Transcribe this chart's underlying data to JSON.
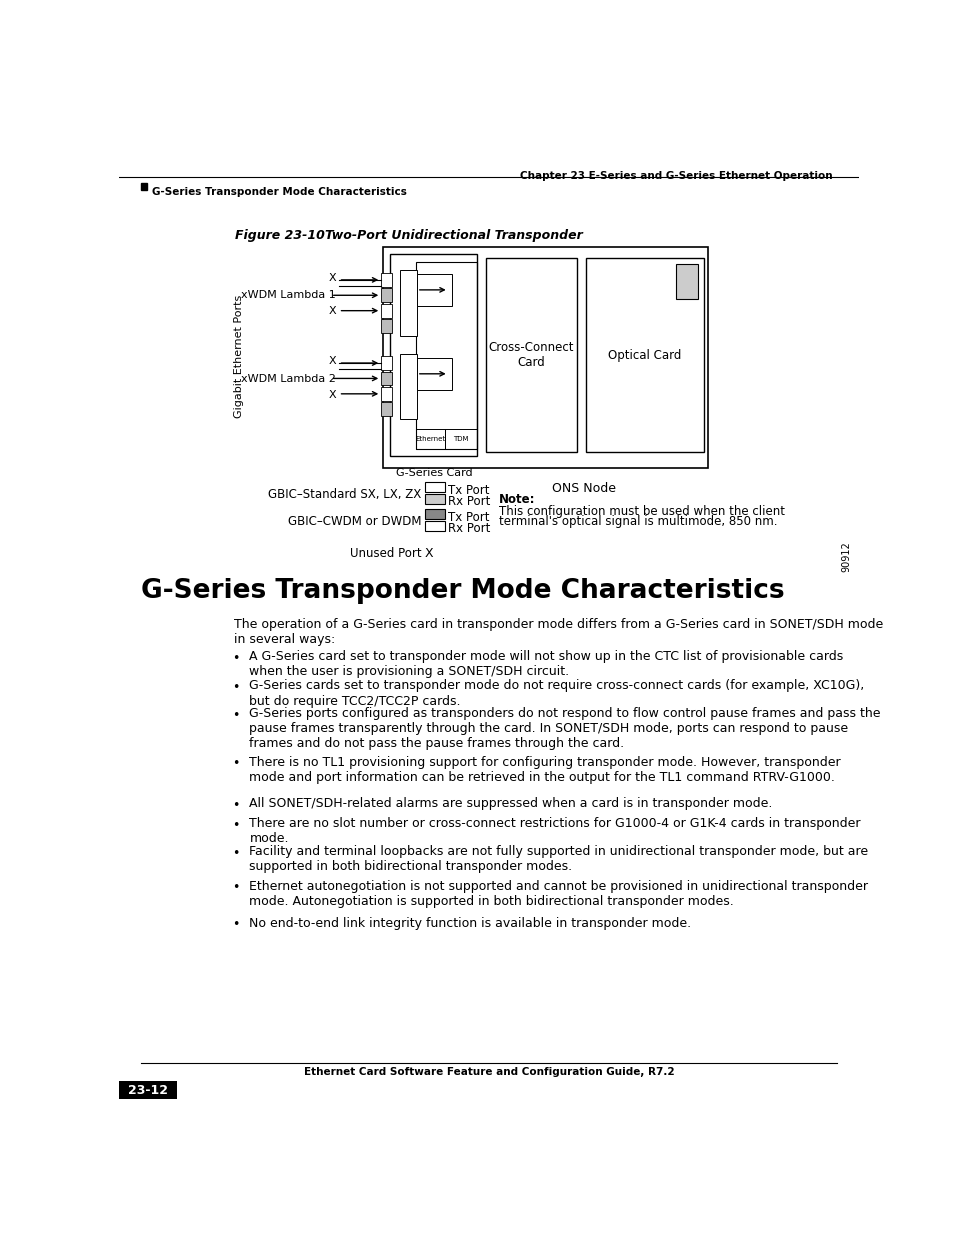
{
  "page_bg": "#ffffff",
  "header_chapter": "Chapter 23 E-Series and G-Series Ethernet Operation",
  "header_section": "G-Series Transponder Mode Characteristics",
  "figure_label": "Figure 23-10",
  "figure_title": "Two-Port Unidirectional Transponder",
  "section_heading": "G-Series Transponder Mode Characteristics",
  "intro_text": "The operation of a G-Series card in transponder mode differs from a G-Series card in SONET/SDH mode\nin several ways:",
  "bullet_points": [
    "A G-Series card set to transponder mode will not show up in the CTC list of provisionable cards\nwhen the user is provisioning a SONET/SDH circuit.",
    "G-Series cards set to transponder mode do not require cross-connect cards (for example, XC10G),\nbut do require TCC2/TCC2P cards.",
    "G-Series ports configured as transponders do not respond to flow control pause frames and pass the\npause frames transparently through the card. In SONET/SDH mode, ports can respond to pause\nframes and do not pass the pause frames through the card.",
    "There is no TL1 provisioning support for configuring transponder mode. However, transponder\nmode and port information can be retrieved in the output for the TL1 command RTRV-G1000.",
    "All SONET/SDH-related alarms are suppressed when a card is in transponder mode.",
    "There are no slot number or cross-connect restrictions for G1000-4 or G1K-4 cards in transponder\nmode.",
    "Facility and terminal loopbacks are not fully supported in unidirectional transponder mode, but are\nsupported in both bidirectional transponder modes.",
    "Ethernet autonegotiation is not supported and cannot be provisioned in unidirectional transponder\nmode. Autonegotiation is supported in both bidirectional transponder modes.",
    "No end-to-end link integrity function is available in transponder mode."
  ],
  "footer_text": "Ethernet Card Software Feature and Configuration Guide, R7.2",
  "page_number": "23-12",
  "ons_node_label": "ONS Node",
  "figure_num": "90912"
}
